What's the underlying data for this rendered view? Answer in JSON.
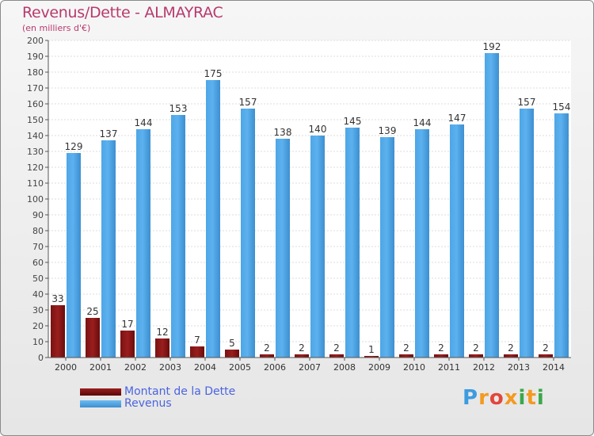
{
  "title": "Revenus/Dette - ALMAYRAC",
  "subtitle": "(en milliers d'€)",
  "logo": {
    "letters": [
      "P",
      "r",
      "o",
      "x",
      "i",
      "t",
      "i"
    ],
    "colors": [
      "#3d9be0",
      "#f39a21",
      "#e2463b",
      "#f39a21",
      "#3aa84a",
      "#f39a21",
      "#3aa84a"
    ]
  },
  "colors": {
    "dette": "#7a1212",
    "revenus": "#4ea6e6",
    "title": "#b73a6d",
    "legend_text": "#4a64e0"
  },
  "chart_data": {
    "type": "bar",
    "categories": [
      "2000",
      "2001",
      "2002",
      "2003",
      "2004",
      "2005",
      "2006",
      "2007",
      "2008",
      "2009",
      "2010",
      "2011",
      "2012",
      "2013",
      "2014"
    ],
    "series": [
      {
        "name": "Montant de la Dette",
        "values": [
          33,
          25,
          17,
          12,
          7,
          5,
          2,
          2,
          2,
          1,
          2,
          2,
          2,
          2,
          2
        ]
      },
      {
        "name": "Revenus",
        "values": [
          129,
          137,
          144,
          153,
          175,
          157,
          138,
          140,
          145,
          139,
          144,
          147,
          192,
          157,
          154
        ]
      }
    ],
    "ylim": [
      0,
      200
    ],
    "yticks": [
      0,
      10,
      20,
      30,
      40,
      50,
      60,
      70,
      80,
      90,
      100,
      110,
      120,
      130,
      140,
      150,
      160,
      170,
      180,
      190,
      200
    ],
    "grid": true,
    "legend": "bottom-left"
  }
}
